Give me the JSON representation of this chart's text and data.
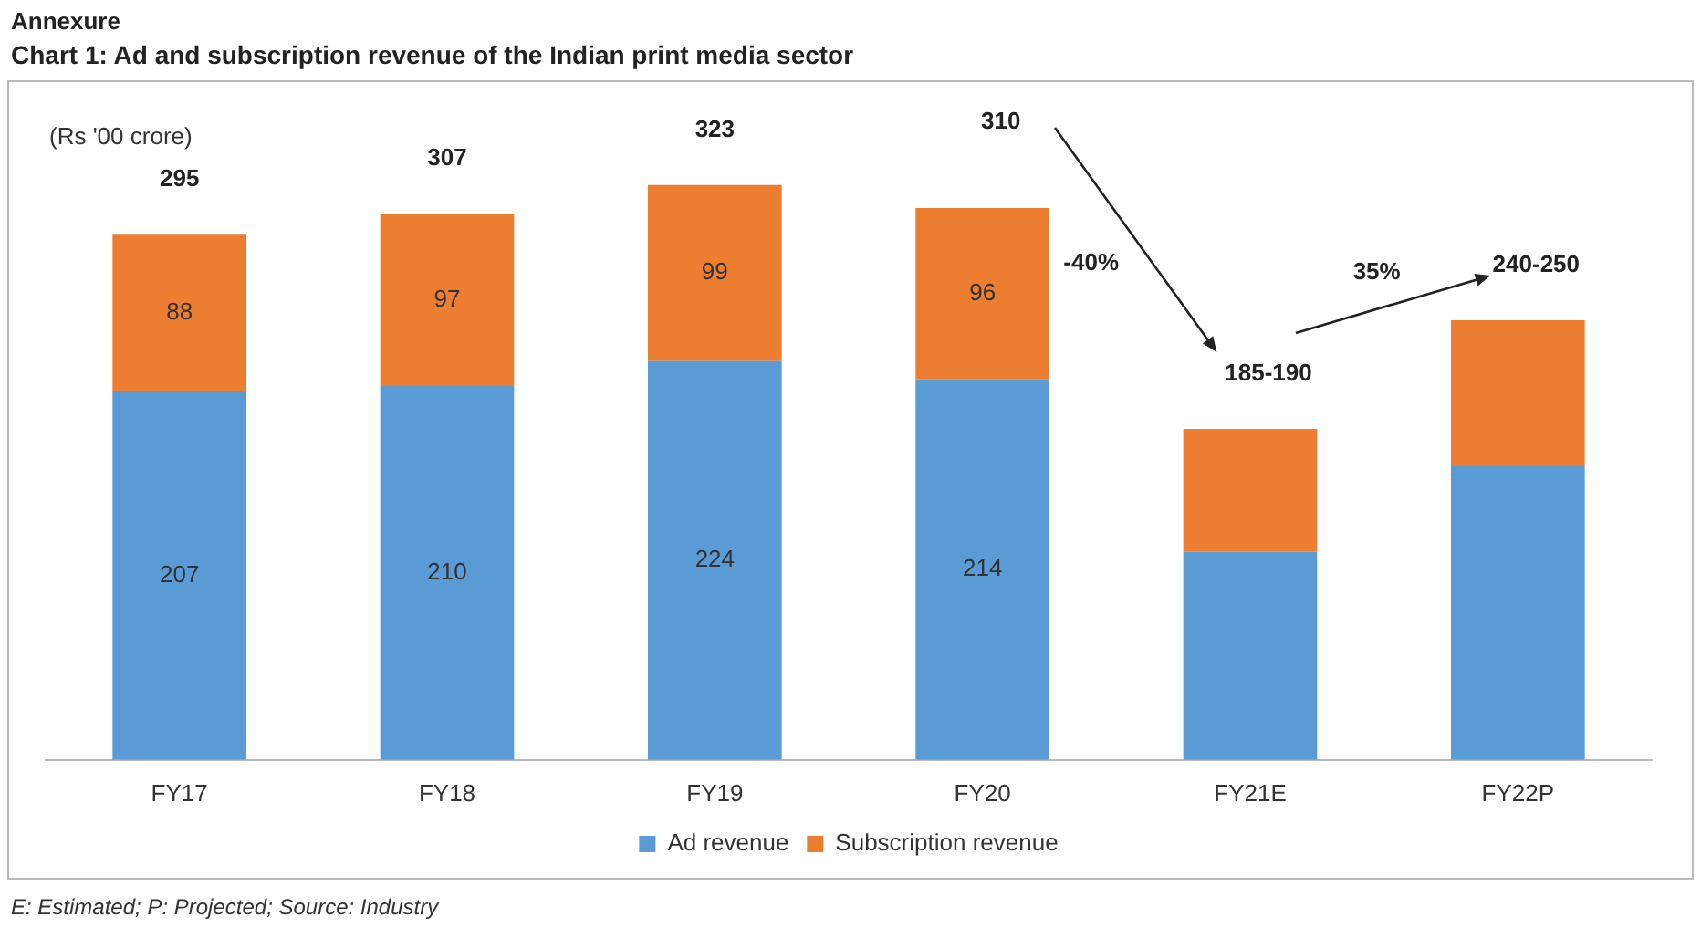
{
  "chart_data": {
    "type": "bar",
    "title": "Annexure",
    "subtitle": "Chart 1: Ad and subscription revenue of the Indian print media sector",
    "categories": [
      "FY17",
      "FY18",
      "FY19",
      "FY20",
      "FY21E",
      "FY22P"
    ],
    "stacked": true,
    "legend": "bottom",
    "series": [
      {
        "name": "Ad revenue",
        "color": "#5b9bd5",
        "values": [
          207,
          210,
          224,
          214,
          117,
          165
        ],
        "value_labels": [
          "207",
          "210",
          "224",
          "214",
          null,
          null
        ]
      },
      {
        "name": "Subscription revenue",
        "color": "#ed7d31",
        "values": [
          88,
          97,
          99,
          96,
          69,
          82
        ],
        "value_labels": [
          "88",
          "97",
          "99",
          "96",
          null,
          null
        ]
      }
    ],
    "totals": [
      "295",
      "307",
      "323",
      "310",
      "185-190",
      "240-250"
    ],
    "annotations": [
      "(Rs '00 crore)",
      "-40%",
      "35%",
      "E: Estimated; P: Projected; Source: Industry"
    ]
  }
}
